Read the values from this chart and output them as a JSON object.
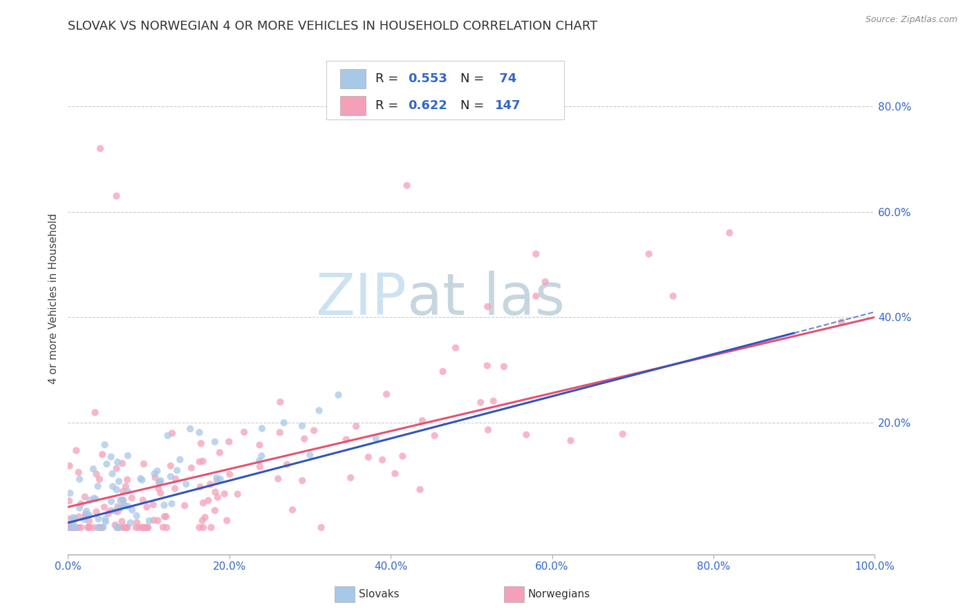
{
  "title": "SLOVAK VS NORWEGIAN 4 OR MORE VEHICLES IN HOUSEHOLD CORRELATION CHART",
  "source_text": "Source: ZipAtlas.com",
  "ylabel": "4 or more Vehicles in Household",
  "xlim": [
    0.0,
    1.0
  ],
  "ylim": [
    -0.05,
    0.92
  ],
  "x_tick_labels": [
    "0.0%",
    "20.0%",
    "40.0%",
    "60.0%",
    "80.0%",
    "100.0%"
  ],
  "x_tick_values": [
    0.0,
    0.2,
    0.4,
    0.6,
    0.8,
    1.0
  ],
  "y_tick_labels": [
    "20.0%",
    "40.0%",
    "60.0%",
    "80.0%"
  ],
  "y_tick_values": [
    0.2,
    0.4,
    0.6,
    0.8
  ],
  "slovak_R": 0.553,
  "slovak_N": 74,
  "norwegian_R": 0.622,
  "norwegian_N": 147,
  "slovak_color": "#a8c8e8",
  "norwegian_color": "#f4a0b8",
  "slovak_line_color": "#3355bb",
  "norwegian_line_color": "#e85070",
  "legend_label_slovak": "Slovaks",
  "legend_label_norwegian": "Norwegians",
  "background_color": "#ffffff",
  "grid_color": "#cccccc",
  "watermark_color": "#c8dff0",
  "title_fontsize": 13,
  "axis_label_fontsize": 11,
  "tick_fontsize": 11
}
